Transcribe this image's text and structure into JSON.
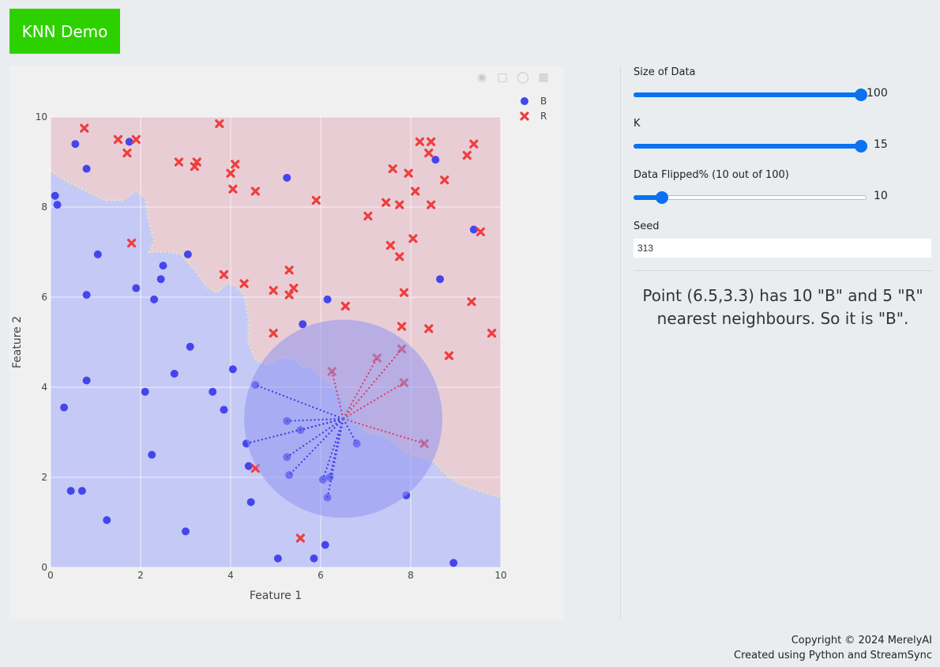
{
  "header": {
    "title": "KNN Demo"
  },
  "modebar": {
    "icons": [
      "camera-icon",
      "select-box-icon",
      "comment-icon",
      "bar-chart-icon"
    ]
  },
  "controls": {
    "size": {
      "label": "Size of Data",
      "value": "100",
      "fraction": 1.0
    },
    "k": {
      "label": "K",
      "value": "15",
      "fraction": 1.0
    },
    "flipped": {
      "label": "Data Flipped% (10 out of 100)",
      "value": "10",
      "fraction": 0.1
    },
    "seed": {
      "label": "Seed",
      "value": "313"
    }
  },
  "result": {
    "line1": "Point (6.5,3.3) has 10 \"B\" and 5 \"R\"",
    "line2": "nearest neighbours. So it is \"B\"."
  },
  "footer": {
    "copyright": "Copyright © 2024 MerelyAI",
    "created": "Created using Python and StreamSync"
  },
  "colors": {
    "blue": "#4545ee",
    "red": "#ee3e3e",
    "region_blue": "#c5c9f5",
    "region_red": "#e9cdd5",
    "circle": "#8f96f0",
    "accent": "#0a72f0",
    "header": "#2ed100"
  },
  "chart_data": {
    "type": "scatter",
    "xlabel": "Feature 1",
    "ylabel": "Feature 2",
    "xlim": [
      0,
      10
    ],
    "ylim": [
      0,
      10
    ],
    "xticks": [
      "0",
      "2",
      "4",
      "6",
      "8",
      "10"
    ],
    "yticks": [
      "0",
      "2",
      "4",
      "6",
      "8",
      "10"
    ],
    "grid": true,
    "legend_position": "top-right",
    "query_point": [
      6.5,
      3.3
    ],
    "radius": 2.2,
    "boundary": [
      [
        0,
        8.8
      ],
      [
        0.3,
        8.6
      ],
      [
        0.6,
        8.45
      ],
      [
        0.9,
        8.3
      ],
      [
        1.2,
        8.15
      ],
      [
        1.6,
        8.15
      ],
      [
        1.9,
        8.35
      ],
      [
        2.1,
        8.2
      ],
      [
        2.2,
        7.6
      ],
      [
        2.3,
        7.25
      ],
      [
        2.2,
        7.0
      ],
      [
        2.6,
        7.0
      ],
      [
        2.9,
        6.95
      ],
      [
        3.2,
        6.6
      ],
      [
        3.5,
        6.2
      ],
      [
        3.7,
        6.1
      ],
      [
        3.9,
        6.3
      ],
      [
        4.1,
        6.25
      ],
      [
        4.3,
        6.05
      ],
      [
        4.4,
        5.5
      ],
      [
        4.4,
        5.0
      ],
      [
        4.55,
        4.6
      ],
      [
        4.8,
        4.5
      ],
      [
        5.1,
        4.65
      ],
      [
        5.4,
        4.65
      ],
      [
        5.6,
        4.45
      ],
      [
        5.8,
        4.45
      ],
      [
        6.0,
        4.2
      ],
      [
        6.2,
        4.1
      ],
      [
        6.4,
        3.9
      ],
      [
        6.6,
        3.55
      ],
      [
        6.8,
        3.2
      ],
      [
        7.0,
        3.0
      ],
      [
        7.3,
        2.95
      ],
      [
        7.6,
        2.8
      ],
      [
        7.9,
        2.55
      ],
      [
        8.2,
        2.45
      ],
      [
        8.5,
        2.35
      ],
      [
        8.8,
        2.05
      ],
      [
        9.1,
        1.85
      ],
      [
        9.5,
        1.7
      ],
      [
        10,
        1.55
      ]
    ],
    "series": [
      {
        "name": "B",
        "points": [
          [
            0.1,
            8.25
          ],
          [
            0.15,
            8.05
          ],
          [
            0.55,
            9.4
          ],
          [
            0.8,
            8.85
          ],
          [
            1.05,
            6.95
          ],
          [
            0.8,
            6.05
          ],
          [
            0.8,
            4.15
          ],
          [
            0.3,
            3.55
          ],
          [
            0.45,
            1.7
          ],
          [
            0.7,
            1.7
          ],
          [
            1.25,
            1.05
          ],
          [
            1.75,
            9.45
          ],
          [
            1.9,
            6.2
          ],
          [
            2.3,
            5.95
          ],
          [
            2.45,
            6.4
          ],
          [
            2.5,
            6.7
          ],
          [
            3.05,
            6.95
          ],
          [
            2.1,
            3.9
          ],
          [
            2.25,
            2.5
          ],
          [
            2.75,
            4.3
          ],
          [
            3.1,
            4.9
          ],
          [
            3.0,
            0.8
          ],
          [
            3.6,
            3.9
          ],
          [
            3.85,
            3.5
          ],
          [
            4.05,
            4.4
          ],
          [
            4.55,
            4.05
          ],
          [
            4.35,
            2.75
          ],
          [
            4.4,
            2.25
          ],
          [
            4.45,
            1.45
          ],
          [
            5.05,
            0.2
          ],
          [
            5.25,
            8.65
          ],
          [
            5.25,
            3.25
          ],
          [
            5.25,
            2.45
          ],
          [
            5.3,
            2.05
          ],
          [
            5.55,
            3.05
          ],
          [
            5.6,
            5.4
          ],
          [
            5.85,
            0.2
          ],
          [
            6.05,
            1.95
          ],
          [
            6.1,
            0.5
          ],
          [
            6.15,
            5.95
          ],
          [
            6.15,
            1.55
          ],
          [
            6.2,
            2.0
          ],
          [
            6.8,
            2.75
          ],
          [
            7.9,
            1.6
          ],
          [
            8.55,
            9.05
          ],
          [
            8.65,
            6.4
          ],
          [
            8.95,
            0.1
          ],
          [
            9.4,
            7.5
          ]
        ]
      },
      {
        "name": "R",
        "points": [
          [
            0.75,
            9.75
          ],
          [
            1.5,
            9.5
          ],
          [
            1.7,
            9.2
          ],
          [
            1.9,
            9.5
          ],
          [
            1.8,
            7.2
          ],
          [
            2.85,
            9.0
          ],
          [
            3.2,
            8.9
          ],
          [
            3.25,
            9.0
          ],
          [
            3.75,
            9.85
          ],
          [
            4.0,
            8.75
          ],
          [
            4.05,
            8.4
          ],
          [
            4.1,
            8.95
          ],
          [
            4.55,
            8.35
          ],
          [
            3.85,
            6.5
          ],
          [
            4.3,
            6.3
          ],
          [
            4.95,
            6.15
          ],
          [
            4.95,
            5.2
          ],
          [
            5.3,
            6.6
          ],
          [
            5.3,
            6.05
          ],
          [
            5.4,
            6.2
          ],
          [
            5.9,
            8.15
          ],
          [
            6.25,
            4.35
          ],
          [
            6.55,
            5.8
          ],
          [
            7.05,
            7.8
          ],
          [
            7.25,
            4.65
          ],
          [
            7.45,
            8.1
          ],
          [
            7.55,
            7.15
          ],
          [
            7.6,
            8.85
          ],
          [
            7.75,
            8.05
          ],
          [
            7.75,
            6.9
          ],
          [
            7.85,
            6.1
          ],
          [
            7.8,
            5.35
          ],
          [
            7.8,
            4.85
          ],
          [
            7.85,
            4.1
          ],
          [
            7.95,
            8.75
          ],
          [
            8.1,
            8.35
          ],
          [
            8.05,
            7.3
          ],
          [
            8.2,
            9.45
          ],
          [
            8.4,
            9.2
          ],
          [
            8.45,
            9.45
          ],
          [
            8.45,
            8.05
          ],
          [
            8.4,
            5.3
          ],
          [
            8.3,
            2.75
          ],
          [
            8.75,
            8.6
          ],
          [
            8.85,
            4.7
          ],
          [
            9.25,
            9.15
          ],
          [
            9.4,
            9.4
          ],
          [
            9.35,
            5.9
          ],
          [
            9.55,
            7.45
          ],
          [
            9.8,
            5.2
          ],
          [
            4.55,
            2.2
          ],
          [
            5.55,
            0.65
          ]
        ]
      }
    ],
    "neighbors": [
      {
        "to": [
          6.25,
          4.35
        ],
        "cls": "R"
      },
      {
        "to": [
          7.25,
          4.65
        ],
        "cls": "R"
      },
      {
        "to": [
          7.8,
          4.85
        ],
        "cls": "R"
      },
      {
        "to": [
          7.85,
          4.1
        ],
        "cls": "R"
      },
      {
        "to": [
          8.3,
          2.75
        ],
        "cls": "R"
      },
      {
        "to": [
          4.55,
          4.05
        ],
        "cls": "B"
      },
      {
        "to": [
          5.25,
          3.25
        ],
        "cls": "B"
      },
      {
        "to": [
          5.55,
          3.05
        ],
        "cls": "B"
      },
      {
        "to": [
          4.35,
          2.75
        ],
        "cls": "B"
      },
      {
        "to": [
          5.25,
          2.45
        ],
        "cls": "B"
      },
      {
        "to": [
          5.3,
          2.05
        ],
        "cls": "B"
      },
      {
        "to": [
          6.05,
          1.95
        ],
        "cls": "B"
      },
      {
        "to": [
          6.2,
          2.0
        ],
        "cls": "B"
      },
      {
        "to": [
          6.15,
          1.55
        ],
        "cls": "B"
      },
      {
        "to": [
          6.8,
          2.75
        ],
        "cls": "B"
      }
    ]
  }
}
